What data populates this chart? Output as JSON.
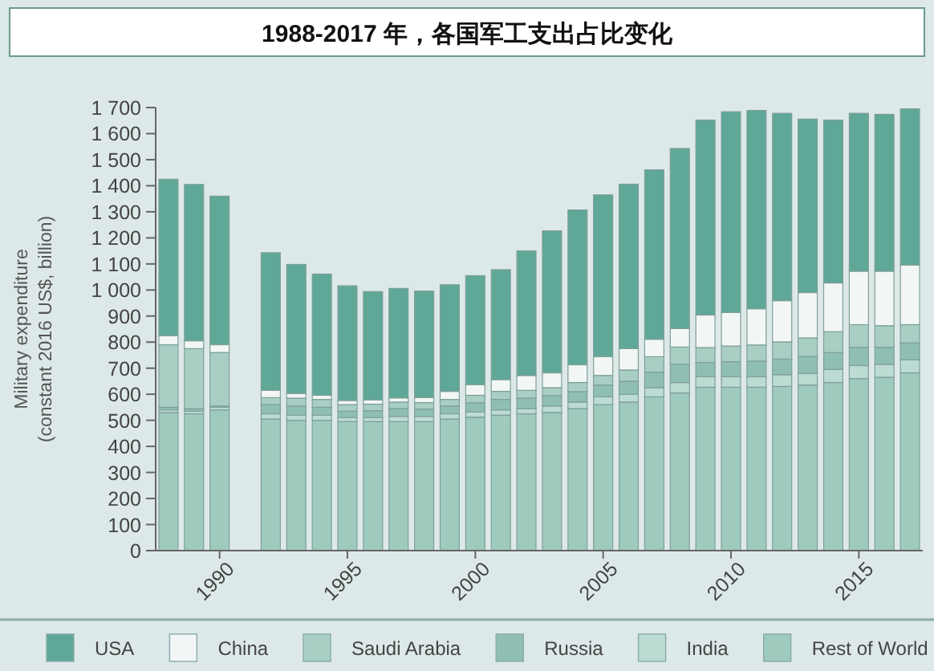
{
  "chart_data": {
    "type": "bar",
    "stacked": true,
    "title": "1988-2017 年，各国军工支出占比变化",
    "ylabel": "Military expenditure\n(constant 2016 US$, billion)",
    "x": [
      1988,
      1989,
      1990,
      1992,
      1993,
      1994,
      1995,
      1996,
      1997,
      1998,
      1999,
      2000,
      2001,
      2002,
      2003,
      2004,
      2005,
      2006,
      2007,
      2008,
      2009,
      2010,
      2011,
      2012,
      2013,
      2014,
      2015,
      2016,
      2017
    ],
    "series": [
      {
        "name": "Rest of World",
        "color": "#9fcabe",
        "values": [
          530,
          525,
          540,
          505,
          500,
          500,
          495,
          495,
          495,
          495,
          505,
          512,
          520,
          525,
          530,
          545,
          560,
          570,
          590,
          605,
          627,
          627,
          627,
          630,
          635,
          645,
          660,
          665,
          682
        ]
      },
      {
        "name": "India",
        "color": "#bcdcd3",
        "values": [
          10,
          10,
          10,
          20,
          20,
          20,
          15,
          15,
          20,
          20,
          20,
          20,
          20,
          20,
          25,
          25,
          30,
          30,
          35,
          40,
          40,
          40,
          40,
          45,
          45,
          50,
          50,
          50,
          50
        ]
      },
      {
        "name": "Russia",
        "color": "#8fbfb2",
        "values": [
          10,
          10,
          5,
          35,
          35,
          30,
          25,
          27,
          30,
          28,
          30,
          35,
          40,
          40,
          40,
          40,
          45,
          50,
          60,
          70,
          55,
          58,
          60,
          60,
          65,
          65,
          70,
          65,
          65
        ]
      },
      {
        "name": "Saudi Arabia",
        "color": "#a9cfc5",
        "values": [
          240,
          230,
          205,
          27,
          30,
          30,
          25,
          25,
          25,
          25,
          25,
          29,
          31,
          30,
          30,
          35,
          37,
          43,
          59,
          66,
          57,
          60,
          62,
          66,
          71,
          80,
          87,
          83,
          70
        ]
      },
      {
        "name": "China",
        "color": "#f2f7f6",
        "values": [
          35,
          30,
          30,
          28,
          18,
          16,
          16,
          16,
          16,
          19,
          31,
          41,
          45,
          57,
          57,
          68,
          72,
          82,
          67,
          71,
          125,
          129,
          139,
          158,
          174,
          187,
          205,
          209,
          229
        ]
      },
      {
        "name": "USA",
        "color": "#5fa898",
        "values": [
          600,
          600,
          570,
          528,
          495,
          465,
          440,
          416,
          420,
          409,
          409,
          418,
          422,
          478,
          545,
          594,
          621,
          631,
          650,
          691,
          748,
          770,
          761,
          719,
          666,
          625,
          606,
          602,
          599
        ]
      }
    ],
    "xlim": [
      1987.5,
      2017.5
    ],
    "xticks": [
      1990,
      1995,
      2000,
      2005,
      2010,
      2015
    ],
    "ylim": [
      0,
      1700
    ],
    "yticks": [
      0,
      100,
      200,
      300,
      400,
      500,
      600,
      700,
      800,
      900,
      {
        "value": 1000,
        "label": "1 000"
      },
      {
        "value": 1100,
        "label": "1 100"
      },
      {
        "value": 1200,
        "label": "1 200"
      },
      {
        "value": 1300,
        "label": "1 300"
      },
      {
        "value": 1400,
        "label": "1 400"
      },
      {
        "value": 1500,
        "label": "1 500"
      },
      {
        "value": 1600,
        "label": "1 600"
      },
      {
        "value": 1700,
        "label": "1 700"
      }
    ],
    "grid": false,
    "legend": "bottom"
  }
}
